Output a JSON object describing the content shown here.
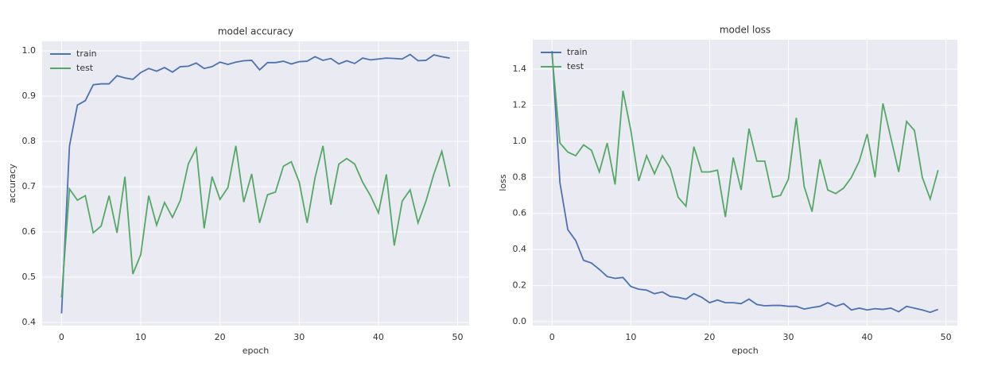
{
  "chart_data": [
    {
      "type": "line",
      "title": "model accuracy",
      "x_label": "epoch",
      "y_label": "accuracy",
      "x": [
        0,
        1,
        2,
        3,
        4,
        5,
        6,
        7,
        8,
        9,
        10,
        11,
        12,
        13,
        14,
        15,
        16,
        17,
        18,
        19,
        20,
        21,
        22,
        23,
        24,
        25,
        26,
        27,
        28,
        29,
        30,
        31,
        32,
        33,
        34,
        35,
        36,
        37,
        38,
        39,
        40,
        41,
        42,
        43,
        44,
        45,
        46,
        47,
        48,
        49
      ],
      "series": [
        {
          "name": "train",
          "color": "#4c72b0",
          "values": [
            0.42,
            0.79,
            0.88,
            0.89,
            0.925,
            0.927,
            0.927,
            0.945,
            0.94,
            0.937,
            0.952,
            0.961,
            0.955,
            0.963,
            0.953,
            0.965,
            0.966,
            0.973,
            0.961,
            0.965,
            0.975,
            0.97,
            0.975,
            0.978,
            0.979,
            0.958,
            0.974,
            0.974,
            0.977,
            0.971,
            0.976,
            0.977,
            0.987,
            0.979,
            0.983,
            0.971,
            0.978,
            0.972,
            0.984,
            0.98,
            0.982,
            0.984,
            0.983,
            0.982,
            0.992,
            0.978,
            0.979,
            0.991,
            0.987,
            0.984
          ]
        },
        {
          "name": "test",
          "color": "#55a868",
          "values": [
            0.455,
            0.695,
            0.67,
            0.68,
            0.598,
            0.613,
            0.68,
            0.598,
            0.722,
            0.507,
            0.55,
            0.68,
            0.615,
            0.665,
            0.632,
            0.67,
            0.75,
            0.785,
            0.608,
            0.722,
            0.672,
            0.698,
            0.79,
            0.666,
            0.728,
            0.62,
            0.682,
            0.688,
            0.745,
            0.755,
            0.71,
            0.62,
            0.72,
            0.79,
            0.66,
            0.75,
            0.762,
            0.75,
            0.71,
            0.68,
            0.642,
            0.727,
            0.57,
            0.668,
            0.693,
            0.62,
            0.668,
            0.728,
            0.778,
            0.7
          ]
        }
      ],
      "xlim": [
        -2.45,
        51.45
      ],
      "xticks": [
        0,
        10,
        20,
        30,
        40,
        50
      ],
      "ylim": [
        0.393,
        1.021
      ],
      "yticks": [
        0.4,
        0.5,
        0.6,
        0.7,
        0.8,
        0.9,
        {
          "value": 1,
          "label": "1.0"
        }
      ],
      "grid": true,
      "legend": "upper left"
    },
    {
      "type": "line",
      "title": "model loss",
      "x_label": "epoch",
      "y_label": "loss",
      "x": [
        0,
        1,
        2,
        3,
        4,
        5,
        6,
        7,
        8,
        9,
        10,
        11,
        12,
        13,
        14,
        15,
        16,
        17,
        18,
        19,
        20,
        21,
        22,
        23,
        24,
        25,
        26,
        27,
        28,
        29,
        30,
        31,
        32,
        33,
        34,
        35,
        36,
        37,
        38,
        39,
        40,
        41,
        42,
        43,
        44,
        45,
        46,
        47,
        48,
        49
      ],
      "series": [
        {
          "name": "train",
          "color": "#4c72b0",
          "values": [
            1.5,
            0.77,
            0.51,
            0.45,
            0.34,
            0.325,
            0.29,
            0.25,
            0.24,
            0.245,
            0.195,
            0.18,
            0.175,
            0.155,
            0.165,
            0.14,
            0.135,
            0.125,
            0.155,
            0.135,
            0.105,
            0.12,
            0.105,
            0.105,
            0.1,
            0.125,
            0.095,
            0.088,
            0.09,
            0.09,
            0.085,
            0.085,
            0.07,
            0.078,
            0.085,
            0.105,
            0.085,
            0.1,
            0.065,
            0.075,
            0.065,
            0.072,
            0.068,
            0.075,
            0.055,
            0.085,
            0.075,
            0.065,
            0.052,
            0.068
          ]
        },
        {
          "name": "test",
          "color": "#55a868",
          "values": [
            1.48,
            0.99,
            0.94,
            0.92,
            0.98,
            0.95,
            0.83,
            0.99,
            0.76,
            1.28,
            1.06,
            0.78,
            0.92,
            0.82,
            0.92,
            0.85,
            0.69,
            0.64,
            0.97,
            0.83,
            0.83,
            0.84,
            0.58,
            0.91,
            0.73,
            1.07,
            0.89,
            0.89,
            0.69,
            0.7,
            0.79,
            1.13,
            0.75,
            0.61,
            0.9,
            0.73,
            0.71,
            0.74,
            0.8,
            0.89,
            1.04,
            0.8,
            1.21,
            1.02,
            0.83,
            1.11,
            1.06,
            0.8,
            0.68,
            0.84
          ]
        }
      ],
      "xlim": [
        -2.45,
        51.45
      ],
      "xticks": [
        0,
        10,
        20,
        30,
        40,
        50
      ],
      "ylim": [
        -0.022,
        1.563
      ],
      "yticks": [
        {
          "value": 0,
          "label": "0.0"
        },
        0.2,
        0.4,
        0.6,
        0.8,
        {
          "value": 1,
          "label": "1.0"
        },
        1.2,
        1.4
      ],
      "grid": true,
      "legend": "upper left"
    }
  ]
}
